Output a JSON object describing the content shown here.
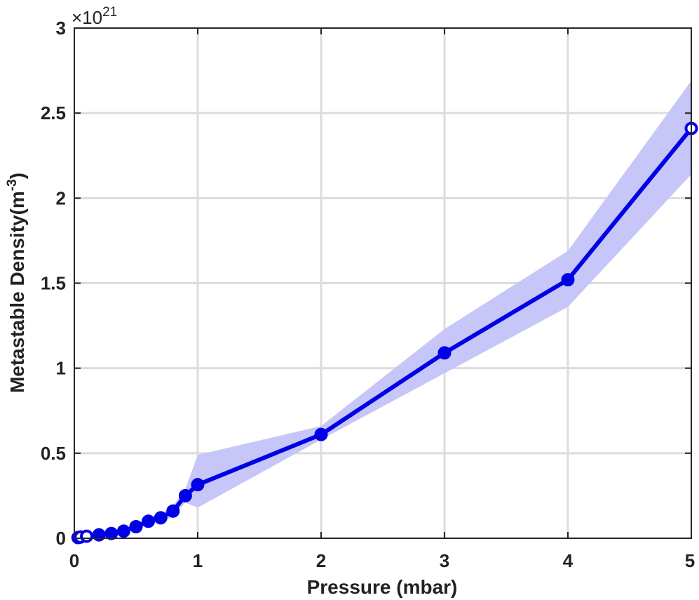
{
  "chart_data": {
    "type": "line",
    "xlabel": "Pressure (mbar)",
    "ylabel": "Metastable Density(m",
    "ylabel_unit_exp": "-3",
    "ylabel_close": ")",
    "y_multiplier_base": "×10",
    "y_multiplier_exp": "21",
    "xlim": [
      0,
      5
    ],
    "ylim": [
      0,
      3
    ],
    "x_ticks": [
      0,
      1,
      2,
      3,
      4,
      5
    ],
    "y_ticks": [
      0,
      0.5,
      1,
      1.5,
      2,
      2.5,
      3
    ],
    "x_tick_labels": [
      "0",
      "1",
      "2",
      "3",
      "4",
      "5"
    ],
    "y_tick_labels": [
      "0",
      "0.5",
      "1",
      "1.5",
      "2",
      "2.5",
      "3"
    ],
    "grid": true,
    "series": [
      {
        "x": [
          0.03,
          0.05,
          0.1,
          0.2,
          0.3,
          0.4,
          0.5,
          0.6,
          0.7,
          0.8,
          0.9,
          1,
          2,
          3,
          4,
          5
        ],
        "y": [
          0.004,
          0.007,
          0.012,
          0.02,
          0.028,
          0.042,
          0.068,
          0.1,
          0.12,
          0.16,
          0.25,
          0.315,
          0.61,
          1.09,
          1.52,
          2.41
        ],
        "upper": [
          0.006,
          0.01,
          0.016,
          0.026,
          0.036,
          0.054,
          0.085,
          0.12,
          0.145,
          0.19,
          0.29,
          0.49,
          0.66,
          1.23,
          1.69,
          2.69
        ],
        "lower": [
          0.002,
          0.004,
          0.008,
          0.014,
          0.02,
          0.03,
          0.051,
          0.08,
          0.095,
          0.13,
          0.21,
          0.18,
          0.58,
          0.97,
          1.36,
          2.14
        ],
        "open_markers": [
          0.03,
          0.05,
          0.1,
          5
        ]
      }
    ],
    "line_color": "#0000e6",
    "band_color": "#c6c6f8"
  }
}
